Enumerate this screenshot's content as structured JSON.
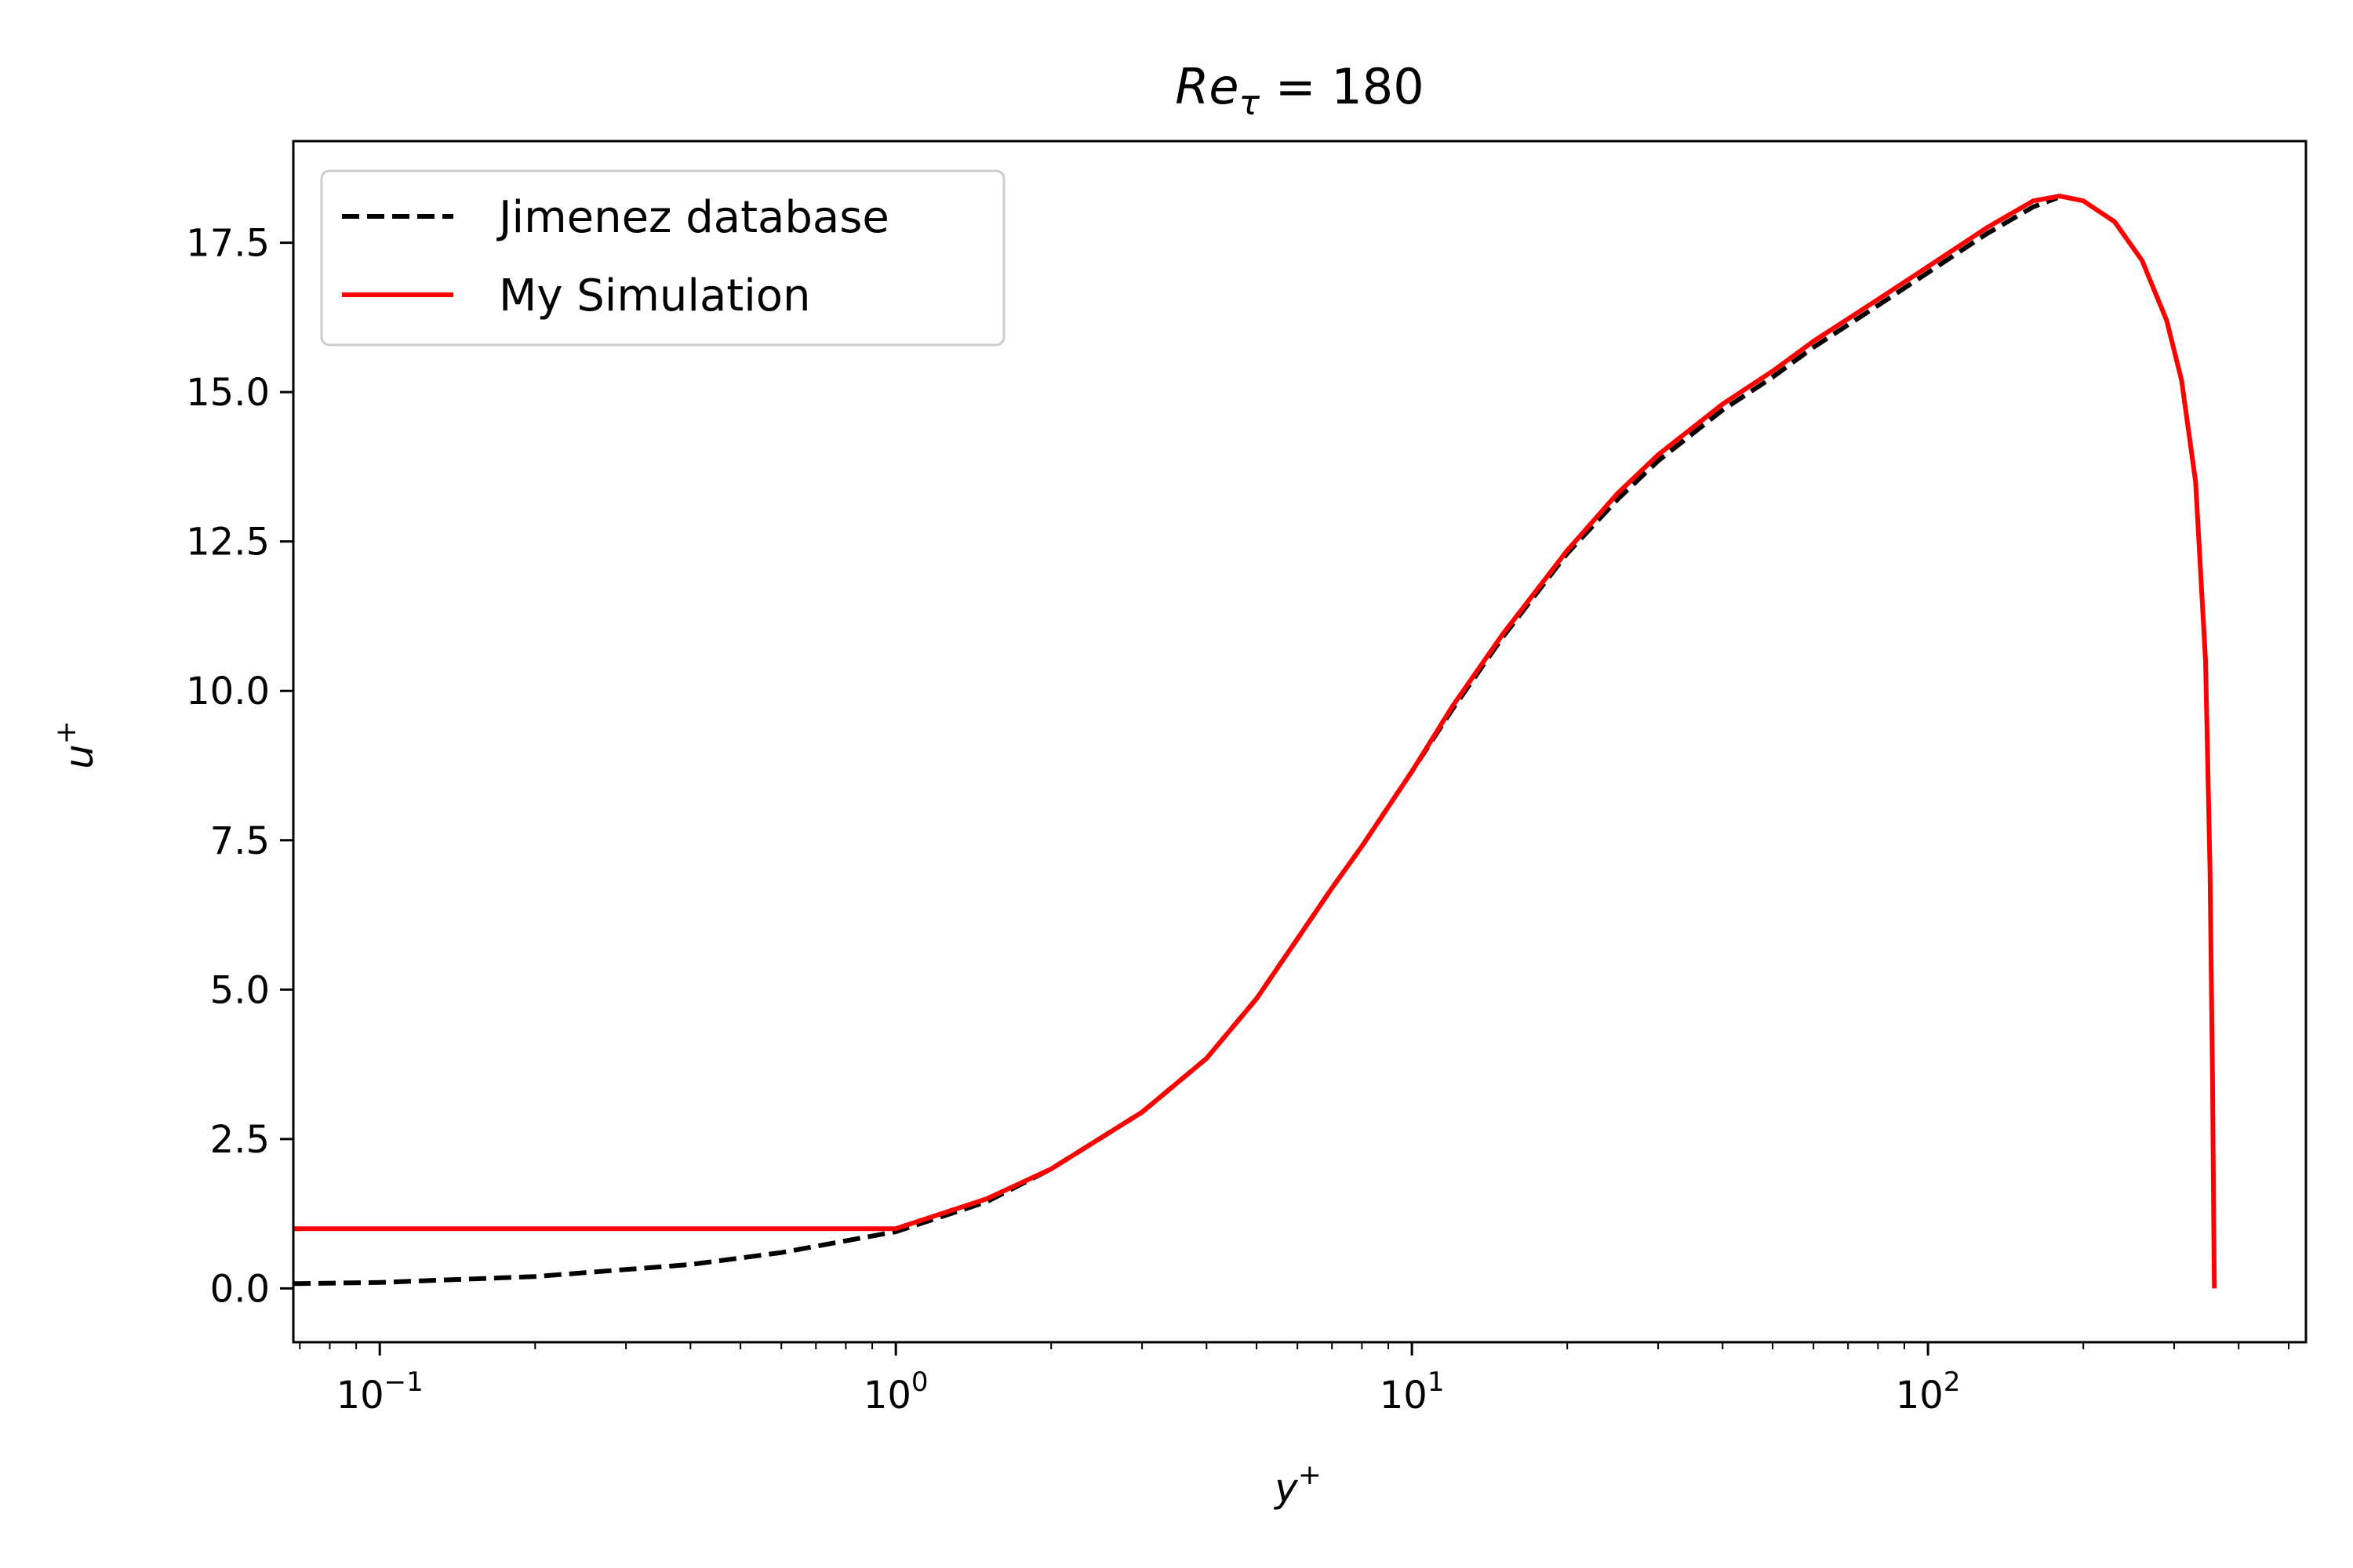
{
  "chart_data": {
    "type": "line",
    "title": {
      "base": "Re",
      "sub": "τ",
      "rest": " = 180"
    },
    "xlabel": {
      "base": "y",
      "sup": "+"
    },
    "ylabel": {
      "base": "u",
      "sup": "+"
    },
    "xscale": "log",
    "xlim": [
      0.068,
      540
    ],
    "ylim": [
      -0.9,
      19.2
    ],
    "x_ticks": [
      {
        "value": 0.1,
        "base": "10",
        "exp": "−1"
      },
      {
        "value": 1,
        "base": "10",
        "exp": "0"
      },
      {
        "value": 10,
        "base": "10",
        "exp": "1"
      },
      {
        "value": 100,
        "base": "10",
        "exp": "2"
      }
    ],
    "y_ticks": [
      {
        "value": 0,
        "label": "0.0"
      },
      {
        "value": 2.5,
        "label": "2.5"
      },
      {
        "value": 5,
        "label": "5.0"
      },
      {
        "value": 7.5,
        "label": "7.5"
      },
      {
        "value": 10,
        "label": "10.0"
      },
      {
        "value": 12.5,
        "label": "12.5"
      },
      {
        "value": 15,
        "label": "15.0"
      },
      {
        "value": 17.5,
        "label": "17.5"
      }
    ],
    "grid": false,
    "legend_position": "top-left",
    "series": [
      {
        "name": "Jimenez database",
        "color": "#000000",
        "style": "dashed",
        "x": [
          0.068,
          0.1,
          0.2,
          0.4,
          0.6,
          1.0,
          1.5,
          2.0,
          3.0,
          4.0,
          5.0,
          6.0,
          7.0,
          8.0,
          10.0,
          12.0,
          15.0,
          20.0,
          25.0,
          30.0,
          40.0,
          50.0,
          60.0,
          80.0,
          100.0,
          130.0,
          160.0,
          178.0
        ],
        "y": [
          0.08,
          0.1,
          0.2,
          0.4,
          0.6,
          0.95,
          1.45,
          2.0,
          2.95,
          3.85,
          4.85,
          5.85,
          6.7,
          7.4,
          8.65,
          9.7,
          10.9,
          12.3,
          13.2,
          13.85,
          14.7,
          15.25,
          15.75,
          16.45,
          17.0,
          17.65,
          18.1,
          18.25
        ]
      },
      {
        "name": "My Simulation",
        "color": "#ff0000",
        "style": "solid",
        "x": [
          0.068,
          1.0,
          1.5,
          2.0,
          3.0,
          4.0,
          5.0,
          6.0,
          7.0,
          8.0,
          10.0,
          12.0,
          15.0,
          20.0,
          25.0,
          30.0,
          40.0,
          50.0,
          60.0,
          80.0,
          100.0,
          130.0,
          160.0,
          180.0,
          200.0,
          230.0,
          260.0,
          290.0,
          310.0,
          330.0,
          345.0,
          352.0,
          356.0,
          358.0,
          359.0
        ],
        "y": [
          1.0,
          1.0,
          1.5,
          2.0,
          2.95,
          3.85,
          4.85,
          5.85,
          6.7,
          7.4,
          8.65,
          9.75,
          10.95,
          12.35,
          13.3,
          13.95,
          14.8,
          15.35,
          15.85,
          16.55,
          17.1,
          17.75,
          18.2,
          18.28,
          18.2,
          17.85,
          17.2,
          16.2,
          15.2,
          13.5,
          10.5,
          7.0,
          3.5,
          1.0,
          0.0
        ]
      }
    ]
  }
}
